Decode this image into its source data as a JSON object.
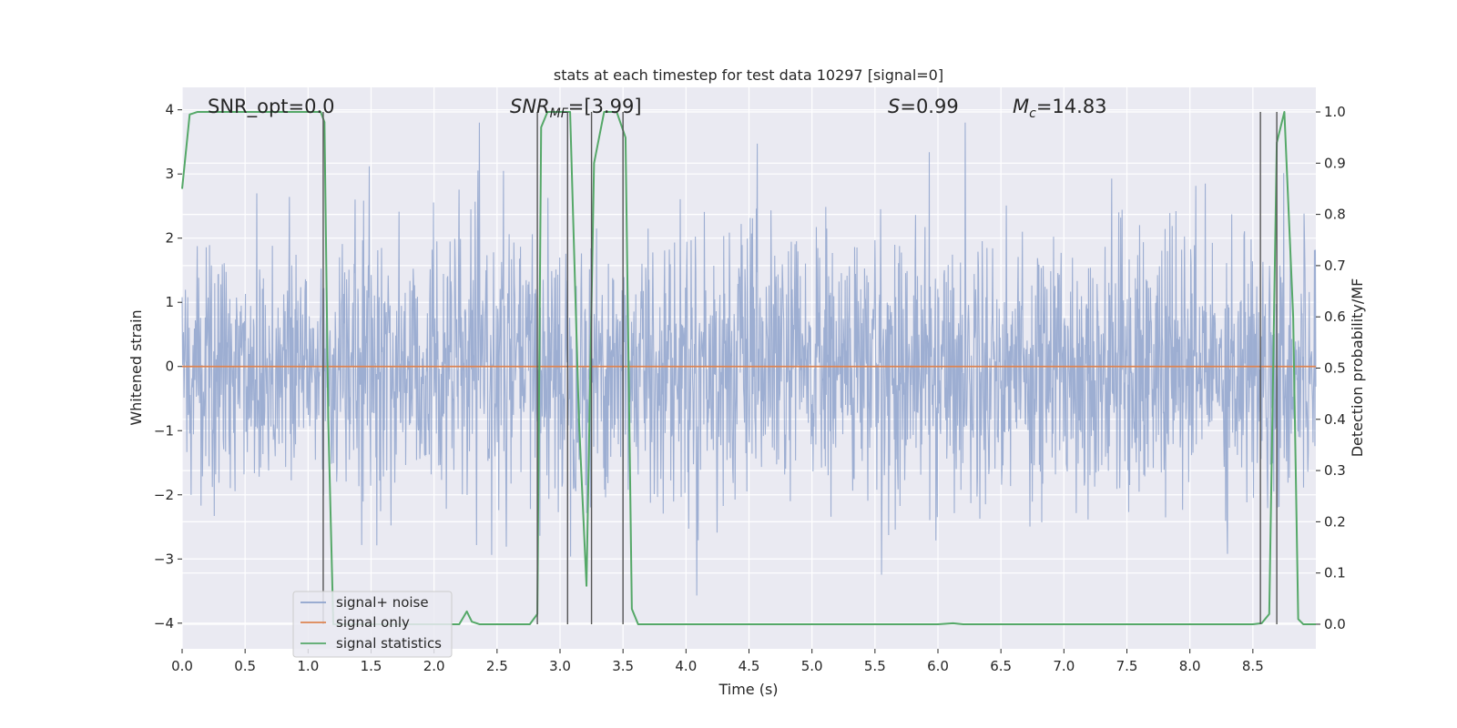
{
  "chart_data": {
    "type": "line",
    "title": "stats at each timestep for test data 10297 [signal=0]",
    "xlabel": "Time (s)",
    "ylabel": "Whitened strain",
    "ylabel_right": "Detection probability/MF",
    "xlim": [
      0,
      9.0
    ],
    "ylim": [
      -4.4,
      4.35
    ],
    "ylim_right": [
      -0.048,
      1.048
    ],
    "x_ticks": [
      0.0,
      0.5,
      1.0,
      1.5,
      2.0,
      2.5,
      3.0,
      3.5,
      4.0,
      4.5,
      5.0,
      5.5,
      6.0,
      6.5,
      7.0,
      7.5,
      8.0,
      8.5
    ],
    "x_tick_labels": [
      "0.0",
      "0.5",
      "1.0",
      "1.5",
      "2.0",
      "2.5",
      "3.0",
      "3.5",
      "4.0",
      "4.5",
      "5.0",
      "5.5",
      "6.0",
      "6.5",
      "7.0",
      "7.5",
      "8.0",
      "8.5"
    ],
    "y_ticks": [
      -4,
      -3,
      -2,
      -1,
      0,
      1,
      2,
      3,
      4
    ],
    "y_tick_labels": [
      "−4",
      "−3",
      "−2",
      "−1",
      "0",
      "1",
      "2",
      "3",
      "4"
    ],
    "y_ticks_right": [
      0.0,
      0.1,
      0.2,
      0.3,
      0.4,
      0.5,
      0.6,
      0.7,
      0.8,
      0.9,
      1.0
    ],
    "y_tick_labels_right": [
      "0.0",
      "0.1",
      "0.2",
      "0.3",
      "0.4",
      "0.5",
      "0.6",
      "0.7",
      "0.8",
      "0.9",
      "1.0"
    ],
    "grid": true,
    "legend_position": "lower-left",
    "annotations": {
      "snr_opt": "SNR_opt=0.0",
      "snr_mf_main": "SNR",
      "snr_mf_sub": "MF",
      "snr_mf_value": "=[3.99]",
      "s_symbol": "S",
      "s_value": "=0.99",
      "mc_main": "M",
      "mc_sub": "c",
      "mc_value": "=14.83"
    },
    "series": [
      {
        "name": "signal+ noise",
        "axis": "left",
        "color": "#8fa3cc",
        "description": "whitened noise, approximately gaussian with peaks up to about ±3.8",
        "envelope_max": 3.8,
        "envelope_min": -3.8
      },
      {
        "name": "signal only",
        "axis": "left",
        "color": "#dd8452",
        "x": [
          0,
          9.0
        ],
        "y": [
          0,
          0
        ]
      },
      {
        "name": "signal statistics",
        "axis": "right",
        "color": "#55a868",
        "x": [
          0.0,
          0.06,
          0.12,
          0.2,
          0.3,
          1.0,
          1.1,
          1.13,
          1.16,
          1.2,
          1.5,
          2.0,
          2.2,
          2.26,
          2.3,
          2.36,
          2.5,
          2.76,
          2.82,
          2.85,
          2.9,
          3.08,
          3.15,
          3.21,
          3.27,
          3.35,
          3.45,
          3.52,
          3.57,
          3.62,
          3.7,
          4.0,
          5.0,
          6.0,
          6.12,
          6.2,
          6.5,
          7.5,
          8.5,
          8.57,
          8.63,
          8.69,
          8.75,
          8.82,
          8.86,
          8.9,
          9.0
        ],
        "y": [
          0.85,
          0.995,
          1.0,
          1.0,
          1.0,
          1.0,
          1.0,
          0.98,
          0.4,
          0.0,
          0.0,
          0.0,
          0.0,
          0.025,
          0.005,
          0.0,
          0.0,
          0.0,
          0.02,
          0.97,
          1.0,
          1.0,
          0.4,
          0.075,
          0.9,
          1.0,
          1.0,
          0.95,
          0.03,
          0.0,
          0.0,
          0.0,
          0.0,
          0.0,
          0.002,
          0.0,
          0.0,
          0.0,
          0.0,
          0.002,
          0.02,
          0.94,
          1.0,
          0.6,
          0.01,
          0.0,
          0.0
        ]
      }
    ],
    "vlines": [
      1.12,
      2.82,
      3.06,
      3.25,
      3.5,
      8.56,
      8.69
    ],
    "vline_color": "#555555"
  }
}
